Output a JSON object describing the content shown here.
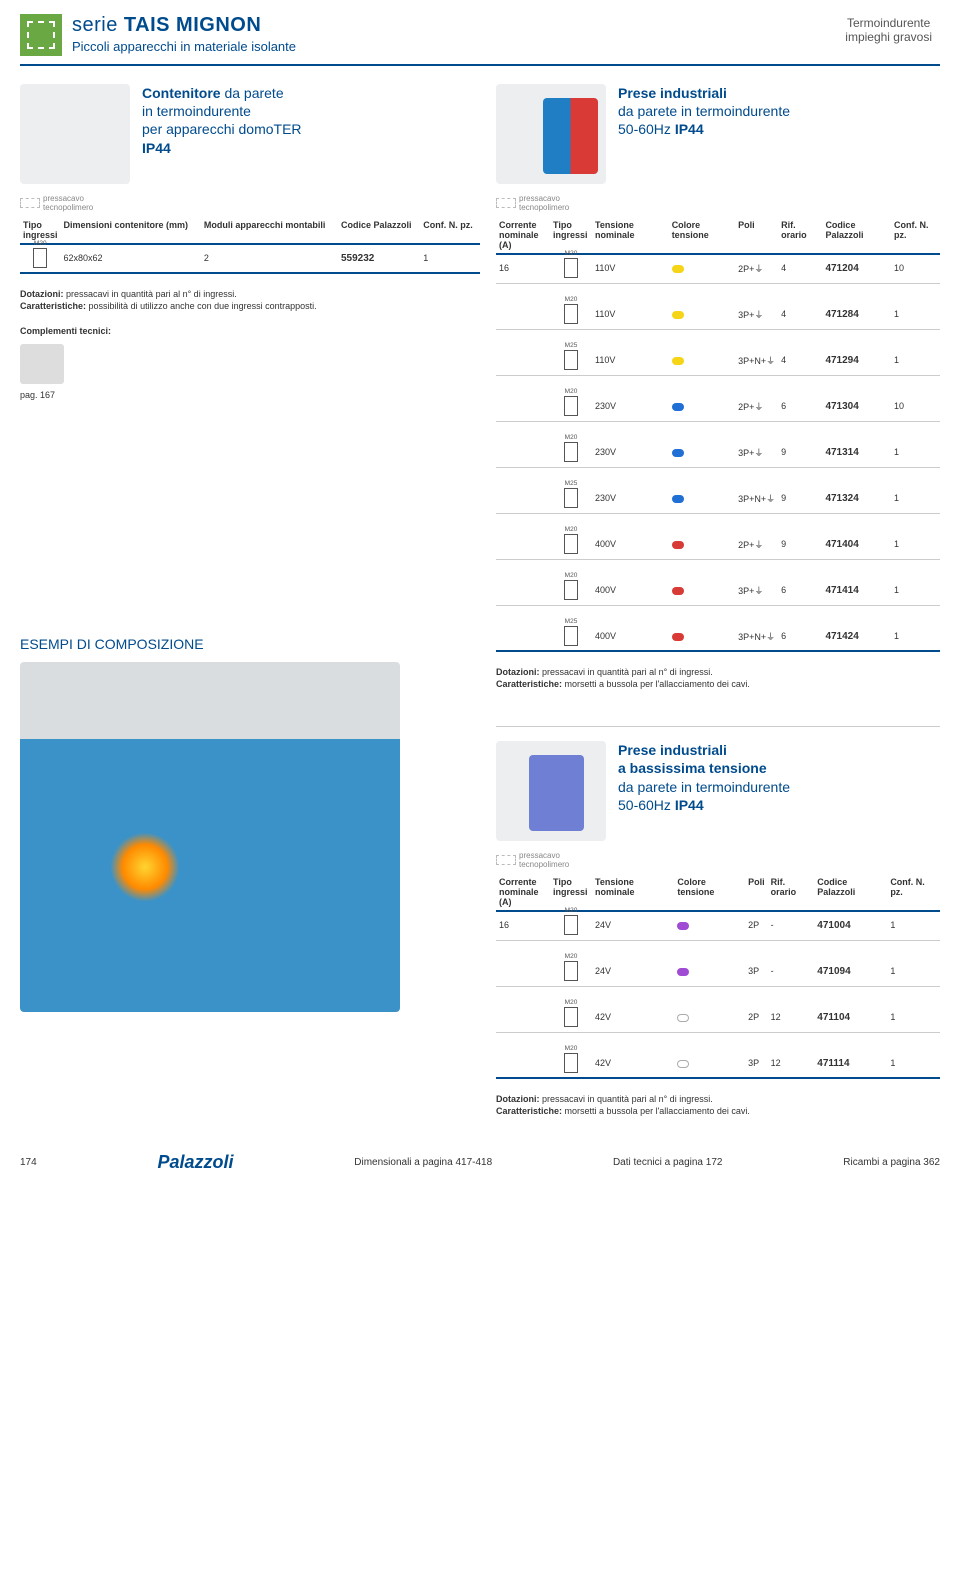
{
  "header": {
    "series_prefix": "serie",
    "series_name": "TAIS MIGNON",
    "subtitle": "Piccoli apparecchi in materiale isolante",
    "right_line1": "Termoindurente",
    "right_line2": "impieghi gravosi"
  },
  "pressacavo": {
    "line1": "pressacavo",
    "line2": "tecnopolimero"
  },
  "left_product": {
    "title_line1": "Contenitore",
    "title_rest1": "da parete",
    "title_line2": "in termoindurente",
    "title_line3": "per apparecchi domoTER",
    "title_ip": "IP44"
  },
  "left_table": {
    "headers": {
      "tipo": "Tipo ingressi",
      "dim": "Dimensioni contenitore (mm)",
      "moduli": "Moduli apparecchi montabili",
      "codice": "Codice Palazzoli",
      "conf": "Conf. N. pz."
    },
    "row": {
      "m": "M20",
      "dim": "62x80x62",
      "moduli": "2",
      "codice": "559232",
      "conf": "1"
    }
  },
  "left_notes": {
    "dotazioni_label": "Dotazioni:",
    "dotazioni_text": "pressacavi in quantità pari al n° di ingressi.",
    "caratt_label": "Caratteristiche:",
    "caratt_text": "possibilità di utilizzo anche con due ingressi contrapposti.",
    "complementi_label": "Complementi tecnici:",
    "pag_ref": "pag. 167"
  },
  "esempi_title": "ESEMPI DI COMPOSIZIONE",
  "right_product1": {
    "title_line1": "Prese industriali",
    "title_line2": "da parete in termoindurente",
    "title_line3": "50-60Hz",
    "title_ip": "IP44"
  },
  "main_table": {
    "headers": {
      "corrente": "Corrente nominale (A)",
      "tipo": "Tipo ingressi",
      "tensione": "Tensione nominale",
      "colore": "Colore tensione",
      "poli": "Poli",
      "rif": "Rif. orario",
      "codice": "Codice Palazzoli",
      "conf": "Conf. N. pz."
    },
    "current": "16",
    "rows": [
      {
        "m": "M20",
        "v": "110V",
        "color": "c-yellow",
        "poli": "2P+⏚",
        "rif": "4",
        "code": "471204",
        "conf": "10"
      },
      {
        "m": "M20",
        "v": "110V",
        "color": "c-yellow",
        "poli": "3P+⏚",
        "rif": "4",
        "code": "471284",
        "conf": "1"
      },
      {
        "m": "M25",
        "v": "110V",
        "color": "c-yellow",
        "poli": "3P+N+⏚",
        "rif": "4",
        "code": "471294",
        "conf": "1"
      },
      {
        "m": "M20",
        "v": "230V",
        "color": "c-blue",
        "poli": "2P+⏚",
        "rif": "6",
        "code": "471304",
        "conf": "10"
      },
      {
        "m": "M20",
        "v": "230V",
        "color": "c-blue",
        "poli": "3P+⏚",
        "rif": "9",
        "code": "471314",
        "conf": "1"
      },
      {
        "m": "M25",
        "v": "230V",
        "color": "c-blue",
        "poli": "3P+N+⏚",
        "rif": "9",
        "code": "471324",
        "conf": "1"
      },
      {
        "m": "M20",
        "v": "400V",
        "color": "c-red",
        "poli": "2P+⏚",
        "rif": "9",
        "code": "471404",
        "conf": "1"
      },
      {
        "m": "M20",
        "v": "400V",
        "color": "c-red",
        "poli": "3P+⏚",
        "rif": "6",
        "code": "471414",
        "conf": "1"
      },
      {
        "m": "M25",
        "v": "400V",
        "color": "c-red",
        "poli": "3P+N+⏚",
        "rif": "6",
        "code": "471424",
        "conf": "1"
      }
    ]
  },
  "right_notes1": {
    "dotazioni_label": "Dotazioni:",
    "dotazioni_text": "pressacavi in quantità pari al n° di ingressi.",
    "caratt_label": "Caratteristiche:",
    "caratt_text": "morsetti a bussola per l'allacciamento dei cavi."
  },
  "right_product2": {
    "title_line1": "Prese industriali",
    "title_line2": "a bassissima tensione",
    "title_line3": "da parete in termoindurente",
    "title_line4": "50-60Hz",
    "title_ip": "IP44"
  },
  "lowv_table": {
    "current": "16",
    "rows": [
      {
        "m": "M20",
        "v": "24V",
        "color": "c-violet",
        "poli": "2P",
        "rif": "-",
        "code": "471004",
        "conf": "1"
      },
      {
        "m": "M20",
        "v": "24V",
        "color": "c-violet",
        "poli": "3P",
        "rif": "-",
        "code": "471094",
        "conf": "1"
      },
      {
        "m": "M20",
        "v": "42V",
        "color": "c-white",
        "poli": "2P",
        "rif": "12",
        "code": "471104",
        "conf": "1"
      },
      {
        "m": "M20",
        "v": "42V",
        "color": "c-white",
        "poli": "3P",
        "rif": "12",
        "code": "471114",
        "conf": "1"
      }
    ]
  },
  "footer": {
    "page": "174",
    "brand": "Palazzoli",
    "dim": "Dimensionali a pagina 417-418",
    "dati": "Dati tecnici a pagina 172",
    "ricambi": "Ricambi a pagina 362"
  }
}
